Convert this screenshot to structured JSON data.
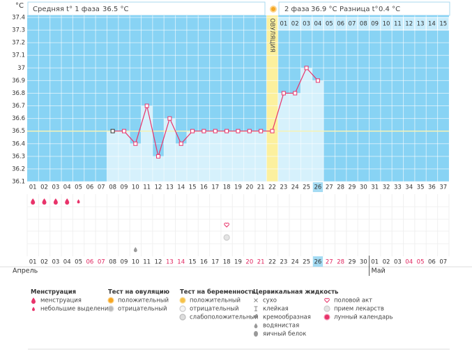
{
  "header": {
    "phase1_label": "Средняя t° 1 фаза",
    "phase1_value": "36.5 °C",
    "phase2_label": "2 фаза",
    "phase2_value": "36.9 °C",
    "diff_label": "Разница t°",
    "diff_value": "0.4 °C"
  },
  "chart_data": {
    "type": "line",
    "y_unit": "°C",
    "categories": [
      "01",
      "02",
      "03",
      "04",
      "05",
      "06",
      "07",
      "08",
      "09",
      "10",
      "11",
      "12",
      "13",
      "14",
      "15",
      "16",
      "17",
      "18",
      "19",
      "20",
      "21",
      "22",
      "23",
      "24",
      "25",
      "26",
      "27",
      "28",
      "29",
      "30",
      "31",
      "32",
      "33",
      "34",
      "35",
      "36",
      "37"
    ],
    "series": [
      {
        "name": "t°",
        "color": "#e8336a",
        "bar_color": "#d6f1fc",
        "values": [
          null,
          null,
          null,
          null,
          null,
          null,
          null,
          36.5,
          36.5,
          36.4,
          36.7,
          36.3,
          36.6,
          36.4,
          36.5,
          36.5,
          36.5,
          36.5,
          36.5,
          36.5,
          36.5,
          36.5,
          36.8,
          36.8,
          37.0,
          36.9,
          null,
          null,
          null,
          null,
          null,
          null,
          null,
          null,
          null,
          null,
          null
        ]
      }
    ],
    "ylim": [
      36.1,
      37.4
    ],
    "yticks": [
      37.4,
      37.3,
      37.2,
      37.1,
      37,
      36.9,
      36.8,
      36.7,
      36.6,
      36.5,
      36.4,
      36.3,
      36.2,
      36.1
    ],
    "coverline": 36.5,
    "grid": true,
    "background": "#88d3f4",
    "ovulation": {
      "label": "ОВУЛЯЦИЯ",
      "category": "22",
      "color": "#fcf09e"
    },
    "phase2_days": [
      "01",
      "02",
      "03",
      "04",
      "05",
      "06",
      "07",
      "08",
      "09",
      "10",
      "11",
      "12",
      "13",
      "14",
      "15"
    ],
    "selected": "26"
  },
  "symbols": [
    {
      "category": "01",
      "type": "menstruation"
    },
    {
      "category": "02",
      "type": "menstruation"
    },
    {
      "category": "03",
      "type": "menstruation"
    },
    {
      "category": "04",
      "type": "menstruation"
    },
    {
      "category": "05",
      "type": "spotting"
    },
    {
      "category": "10",
      "type": "watery"
    },
    {
      "category": "18",
      "type": "intercourse"
    },
    {
      "category": "18",
      "type": "medication"
    }
  ],
  "months": [
    {
      "name": "Апрель",
      "dates": [
        {
          "label": "01"
        },
        {
          "label": "02"
        },
        {
          "label": "03"
        },
        {
          "label": "04"
        },
        {
          "label": "05"
        },
        {
          "label": "06",
          "color": "#e0245e"
        },
        {
          "label": "07",
          "color": "#e0245e"
        },
        {
          "label": "08"
        },
        {
          "label": "09"
        },
        {
          "label": "10"
        },
        {
          "label": "11"
        },
        {
          "label": "12"
        },
        {
          "label": "13",
          "color": "#e0245e"
        },
        {
          "label": "14",
          "color": "#e0245e"
        },
        {
          "label": "15"
        },
        {
          "label": "16"
        },
        {
          "label": "17"
        },
        {
          "label": "18"
        },
        {
          "label": "19"
        },
        {
          "label": "20",
          "color": "#e0245e"
        },
        {
          "label": "21",
          "color": "#e0245e"
        },
        {
          "label": "22"
        },
        {
          "label": "23"
        },
        {
          "label": "24"
        },
        {
          "label": "25"
        },
        {
          "label": "26"
        },
        {
          "label": "27",
          "color": "#e0245e"
        },
        {
          "label": "28",
          "color": "#e0245e"
        },
        {
          "label": "29"
        },
        {
          "label": "30"
        }
      ]
    },
    {
      "name": "Май",
      "dates": [
        {
          "label": "01"
        },
        {
          "label": "02"
        },
        {
          "label": "03"
        },
        {
          "label": "04",
          "color": "#e0245e"
        },
        {
          "label": "05",
          "color": "#e0245e"
        },
        {
          "label": "06"
        },
        {
          "label": "07"
        }
      ]
    }
  ],
  "legend": [
    {
      "title": "Менструация",
      "items": [
        {
          "icon": "menstruation",
          "label": "менструация"
        },
        {
          "icon": "spotting",
          "label": "небольшие выделения"
        }
      ]
    },
    {
      "title": "Тест на овуляцию",
      "items": [
        {
          "icon": "ovu-pos",
          "label": "положительный"
        },
        {
          "icon": "ovu-neg",
          "label": "отрицательный"
        }
      ]
    },
    {
      "title": "Тест на беременность",
      "items": [
        {
          "icon": "preg-pos",
          "label": "положительный"
        },
        {
          "icon": "preg-neg",
          "label": "отрицательный"
        },
        {
          "icon": "preg-weak",
          "label": "слабоположительный"
        }
      ]
    },
    {
      "title": "Цервикальная жидкость",
      "items": [
        {
          "icon": "dry",
          "label": "сухо"
        },
        {
          "icon": "sticky",
          "label": "клейкая"
        },
        {
          "icon": "creamy",
          "label": "кремообразная"
        },
        {
          "icon": "watery",
          "label": "водянистая"
        },
        {
          "icon": "eggwhite",
          "label": "яичный белок"
        }
      ]
    },
    {
      "items": [
        {
          "icon": "intercourse",
          "label": "половой акт"
        },
        {
          "icon": "medication",
          "label": "прием лекарств"
        },
        {
          "icon": "moon",
          "label": "лунный календарь"
        }
      ]
    }
  ]
}
